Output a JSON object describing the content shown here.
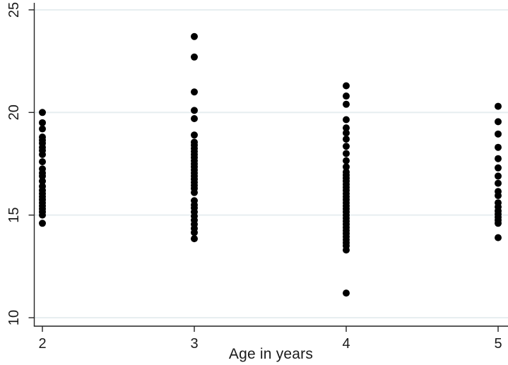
{
  "figure": {
    "title": "",
    "xlabel": "Age in years"
  },
  "chart_data": {
    "type": "scatter",
    "subtype": "strip-plot",
    "title": "",
    "xlabel": "Age in years",
    "ylabel": "",
    "xlim": [
      1.94,
      5.07
    ],
    "ylim": [
      9.6,
      25.5
    ],
    "xticks": [
      2,
      3,
      4,
      5
    ],
    "yticks": [
      10,
      15,
      20,
      25
    ],
    "grid": "horizontal-only",
    "legend": "none",
    "marker": {
      "shape": "circle",
      "radius_px": 5
    },
    "colors": {
      "marker": "#000000",
      "axis": "#242424",
      "grid": "#e7eef0",
      "background": "#ffffff",
      "tick_label": "#1a1a1a"
    },
    "series": [
      {
        "name": "age-2",
        "x": 2,
        "values": [
          20.0,
          19.5,
          19.2,
          18.8,
          18.65,
          18.5,
          18.3,
          18.15,
          17.95,
          17.6,
          17.25,
          17.05,
          16.9,
          16.65,
          16.4,
          16.2,
          16.05,
          15.9,
          15.75,
          15.6,
          15.45,
          15.3,
          15.15,
          15.0,
          14.6
        ]
      },
      {
        "name": "age-3",
        "x": 3,
        "values": [
          23.7,
          22.7,
          21.0,
          20.1,
          19.7,
          18.9,
          18.55,
          18.4,
          18.25,
          18.1,
          17.95,
          17.8,
          17.65,
          17.5,
          17.35,
          17.2,
          17.05,
          16.9,
          16.75,
          16.6,
          16.45,
          16.3,
          16.1,
          15.7,
          15.5,
          15.35,
          15.15,
          14.95,
          14.75,
          14.55,
          14.35,
          14.15,
          13.85
        ]
      },
      {
        "name": "age-4",
        "x": 4,
        "values": [
          21.3,
          20.8,
          20.4,
          19.65,
          19.25,
          19.0,
          18.7,
          18.35,
          18.0,
          17.65,
          17.35,
          17.1,
          16.95,
          16.8,
          16.65,
          16.5,
          16.35,
          16.2,
          16.05,
          15.9,
          15.75,
          15.6,
          15.45,
          15.3,
          15.15,
          15.0,
          14.85,
          14.7,
          14.55,
          14.4,
          14.25,
          14.1,
          13.95,
          13.8,
          13.65,
          13.5,
          13.3,
          11.2
        ]
      },
      {
        "name": "age-5",
        "x": 5,
        "values": [
          20.3,
          19.55,
          18.95,
          18.3,
          17.75,
          17.3,
          16.9,
          16.55,
          16.15,
          15.95,
          15.6,
          15.4,
          15.2,
          15.05,
          14.9,
          14.75,
          14.6,
          13.9
        ]
      }
    ]
  }
}
